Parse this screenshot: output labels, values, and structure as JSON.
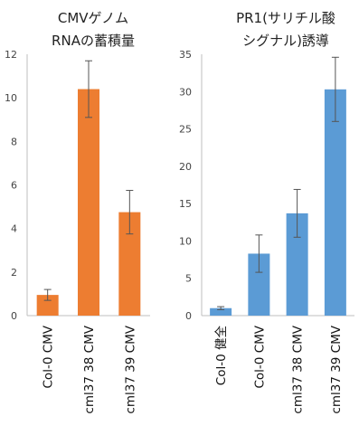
{
  "chart_data": [
    {
      "type": "bar",
      "title_lines": [
        "CMVゲノム",
        "RNAの蓄積量"
      ],
      "categories": [
        "Col-0 CMV",
        "cml37 38 CMV",
        "cml37 39 CMV"
      ],
      "values": [
        0.95,
        10.4,
        4.75
      ],
      "errors": [
        0.25,
        1.3,
        1.0
      ],
      "ylim": [
        0,
        12
      ],
      "yticks": [
        "0",
        "2",
        "4",
        "6",
        "8",
        "10",
        "12"
      ],
      "color": "#ed7d31",
      "grid": false
    },
    {
      "type": "bar",
      "title_lines": [
        "PR1(サリチル酸",
        "シグナル)誘導"
      ],
      "categories": [
        "Col-0 健全",
        "Col-0 CMV",
        "cml37 38 CMV",
        "cml37 39 CMV"
      ],
      "values": [
        1.0,
        8.3,
        13.7,
        30.3
      ],
      "errors": [
        0.2,
        2.5,
        3.2,
        4.3
      ],
      "ylim": [
        0,
        35
      ],
      "yticks": [
        "0",
        "5",
        "10",
        "15",
        "20",
        "25",
        "30",
        "35"
      ],
      "color": "#5b9bd5",
      "grid": false
    }
  ]
}
